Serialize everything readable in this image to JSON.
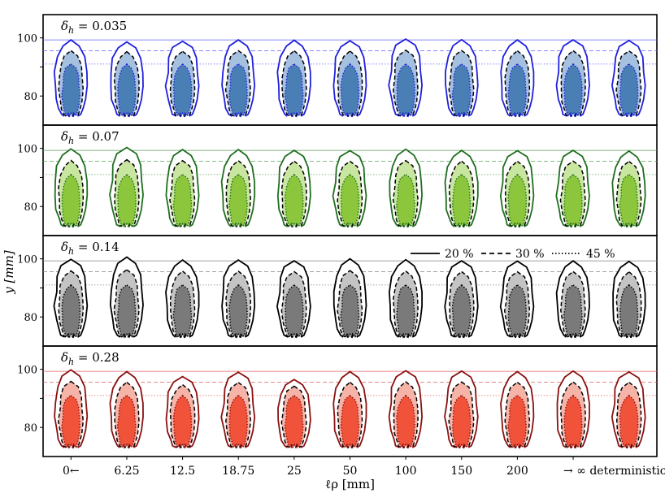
{
  "chart_data": {
    "type": "contour-grid",
    "ylabel": "y [mm]",
    "xlabel": "ℓρ [mm]",
    "ylim": [
      70,
      108
    ],
    "yticks": [
      80,
      90,
      100
    ],
    "ytick_labels": [
      "80",
      "",
      "100"
    ],
    "columns": [
      "0←",
      "6.25",
      "12.5",
      "18.75",
      "25",
      "50",
      "100",
      "150",
      "200",
      "→ ∞ deterministic"
    ],
    "column_count": 11,
    "legend": {
      "placement": "top-right of third panel",
      "entries": [
        {
          "label": "20 %",
          "style": "solid"
        },
        {
          "label": "30 %",
          "style": "dashed"
        },
        {
          "label": "45 %",
          "style": "dotted"
        }
      ]
    },
    "panels": [
      {
        "label": "δ_h = 0.035",
        "label_base": "δ",
        "label_sub": "h",
        "label_rest": " = 0.035",
        "outer": "#1f1fdd",
        "light": "#a6c0e0",
        "dark": "#4a7fb5",
        "refline": "#6060ff",
        "contour_tops": {
          "20%": 99.3,
          "30%": 95.6,
          "45%": 91.0
        },
        "outer_tops": [
          99.3,
          98.6,
          98.8,
          99.3,
          99.2,
          99.0,
          99.6,
          99.4,
          99.3,
          99.3,
          99.1
        ],
        "bottom": 73.2
      },
      {
        "label": "δ_h = 0.07",
        "label_base": "δ",
        "label_sub": "h",
        "label_rest": " = 0.07",
        "outer": "#1f6e1f",
        "light": "#c9e6a0",
        "dark": "#8cc63c",
        "refline": "#5aa05a",
        "contour_tops": {
          "20%": 99.3,
          "30%": 95.6,
          "45%": 91.0
        },
        "outer_tops": [
          99.8,
          100.3,
          99.6,
          99.6,
          99.3,
          99.2,
          99.7,
          99.3,
          99.2,
          99.3,
          99.1
        ],
        "bottom": 73.2
      },
      {
        "label": "δ_h = 0.14",
        "label_base": "δ",
        "label_sub": "h",
        "label_rest": " = 0.14",
        "outer": "#000000",
        "light": "#c4c4c4",
        "dark": "#7a7a7a",
        "refline": "#808080",
        "contour_tops": {
          "20%": 99.3,
          "30%": 95.6,
          "45%": 91.0
        },
        "outer_tops": [
          99.8,
          100.6,
          99.6,
          99.6,
          99.3,
          100.0,
          99.7,
          99.3,
          99.2,
          99.3,
          99.1
        ],
        "bottom": 73.2
      },
      {
        "label": "δ_h = 0.28",
        "label_base": "δ",
        "label_sub": "h",
        "label_rest": " = 0.28",
        "outer": "#8b1010",
        "light": "#f6b4a8",
        "dark": "#f0533a",
        "refline": "#e06060",
        "contour_tops": {
          "20%": 99.3,
          "30%": 95.6,
          "45%": 91.0
        },
        "outer_tops": [
          99.8,
          99.2,
          97.5,
          99.0,
          96.5,
          99.2,
          99.5,
          99.4,
          99.2,
          99.4,
          99.1
        ],
        "bottom": 73.2
      }
    ]
  }
}
